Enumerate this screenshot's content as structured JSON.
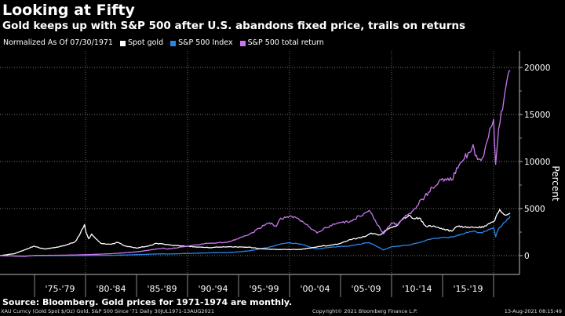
{
  "header": {
    "title": "Looking at Fifty",
    "subtitle": "Gold keeps up with S&P 500 after U.S. abandons fixed price, trails on returns"
  },
  "legend": {
    "note": "Normalized As Of 07/30/1971",
    "items": [
      {
        "label": "Spot gold",
        "color": "#ffffff"
      },
      {
        "label": "S&P 500 Index",
        "color": "#2a86e8"
      },
      {
        "label": "S&P 500 total return",
        "color": "#c878f0"
      }
    ]
  },
  "footer": {
    "source": "Source: Bloomberg. Gold prices for 1971-1974 are monthly.",
    "ticker_info": "XAU Curncy (Gold Spot   $/Oz) Gold, S&P 500 Since '71  Daily 30JUL1971-13AUG2021",
    "copyright": "Copyright© 2021 Bloomberg Finance L.P.",
    "timestamp": "13-Aug-2021 08:15:49"
  },
  "chart_data": {
    "type": "line",
    "title": "Looking at Fifty",
    "subtitle": "Gold keeps up with S&P 500 after U.S. abandons fixed price, trails on returns",
    "xlabel": "",
    "ylabel": "Percent",
    "x_range": [
      1971.58,
      2021.62
    ],
    "ylim": [
      -1500,
      21500
    ],
    "y_ticks": [
      0,
      5000,
      10000,
      15000,
      20000
    ],
    "y_tick_labels": [
      "0",
      "5000",
      "10000",
      "15000",
      "20000"
    ],
    "y_axis_side": "right",
    "x_categories": [
      "'75-'79",
      "'80-'84",
      "'85-'89",
      "'90-'94",
      "'95-'99",
      "'00-'04",
      "'05-'09",
      "'10-'14",
      "'15-'19"
    ],
    "x_category_starts": [
      1975,
      1980,
      1985,
      1990,
      1995,
      2000,
      2005,
      2010,
      2015
    ],
    "vertical_gridlines": [
      1980,
      1990,
      2000,
      2010,
      2020
    ],
    "grid": true,
    "legend_position": "top-left",
    "series": [
      {
        "name": "Spot gold",
        "color": "#ffffff",
        "x": [
          1971.58,
          1973.0,
          1974.0,
          1974.9,
          1976.0,
          1977.0,
          1978.0,
          1979.0,
          1979.5,
          1979.9,
          1980.05,
          1980.3,
          1980.6,
          1981.0,
          1981.5,
          1982.5,
          1983.1,
          1984.0,
          1985.0,
          1986.0,
          1987.0,
          1987.9,
          1988.5,
          1990.0,
          1992.0,
          1994.0,
          1996.0,
          1997.5,
          1999.0,
          2001.0,
          2002.0,
          2003.0,
          2004.0,
          2005.0,
          2006.0,
          2007.0,
          2008.0,
          2008.8,
          2009.5,
          2010.0,
          2010.5,
          2011.0,
          2011.7,
          2012.0,
          2012.7,
          2013.3,
          2014.0,
          2015.0,
          2015.9,
          2016.5,
          2017.0,
          2018.0,
          2019.0,
          2019.5,
          2020.0,
          2020.6,
          2020.9,
          2021.2,
          2021.62
        ],
        "y": [
          0,
          200,
          600,
          1000,
          700,
          850,
          1100,
          1500,
          2400,
          3300,
          2500,
          1800,
          2300,
          1800,
          1300,
          1200,
          1400,
          1000,
          800,
          1000,
          1300,
          1200,
          1100,
          1000,
          850,
          950,
          900,
          700,
          650,
          650,
          800,
          1000,
          1100,
          1300,
          1700,
          1900,
          2400,
          2200,
          2700,
          3000,
          3200,
          3800,
          4300,
          4000,
          4000,
          3200,
          3100,
          2800,
          2600,
          3100,
          3000,
          3000,
          3000,
          3400,
          3600,
          4900,
          4500,
          4300,
          4500
        ]
      },
      {
        "name": "S&P 500 Index",
        "color": "#2a86e8",
        "x": [
          1971.58,
          1974.0,
          1975.0,
          1978.0,
          1980.0,
          1982.5,
          1985.0,
          1987.6,
          1988.0,
          1990.0,
          1992.0,
          1994.0,
          1995.0,
          1996.0,
          1997.0,
          1998.0,
          1999.0,
          2000.0,
          2000.7,
          2001.5,
          2002.7,
          2004.0,
          2006.0,
          2007.8,
          2008.5,
          2009.2,
          2010.0,
          2011.5,
          2012.0,
          2013.0,
          2014.0,
          2015.0,
          2016.0,
          2017.0,
          2018.0,
          2018.9,
          2019.5,
          2020.0,
          2020.2,
          2020.5,
          2021.0,
          2021.62
        ],
        "y": [
          0,
          -50,
          0,
          0,
          20,
          30,
          100,
          200,
          170,
          230,
          300,
          330,
          400,
          500,
          700,
          900,
          1200,
          1350,
          1300,
          1100,
          700,
          900,
          1050,
          1400,
          1000,
          600,
          950,
          1100,
          1200,
          1500,
          1800,
          1900,
          2000,
          2300,
          2600,
          2400,
          2800,
          3000,
          2000,
          2900,
          3500,
          4200
        ]
      },
      {
        "name": "S&P 500 total return",
        "color": "#c878f0",
        "x": [
          1971.58,
          1974.0,
          1975.0,
          1978.0,
          1980.0,
          1982.5,
          1985.0,
          1987.6,
          1988.0,
          1990.0,
          1992.0,
          1994.0,
          1995.0,
          1996.0,
          1997.0,
          1998.0,
          1998.7,
          1999.0,
          2000.0,
          2000.7,
          2001.5,
          2002.7,
          2004.0,
          2006.0,
          2007.8,
          2008.5,
          2009.2,
          2010.0,
          2010.6,
          2011.5,
          2012.0,
          2013.0,
          2014.0,
          2015.0,
          2015.9,
          2016.5,
          2017.0,
          2018.0,
          2018.2,
          2018.9,
          2019.5,
          2020.0,
          2020.2,
          2020.5,
          2021.0,
          2021.62
        ],
        "y": [
          0,
          -80,
          20,
          50,
          100,
          200,
          400,
          800,
          700,
          1000,
          1300,
          1450,
          1800,
          2200,
          2900,
          3500,
          3100,
          3800,
          4200,
          4000,
          3400,
          2400,
          3200,
          3700,
          4800,
          3500,
          2300,
          3500,
          3300,
          4300,
          4700,
          6000,
          7200,
          8200,
          8000,
          9300,
          10100,
          11800,
          10600,
          10400,
          12600,
          14500,
          9700,
          13500,
          16500,
          19700
        ]
      }
    ]
  }
}
